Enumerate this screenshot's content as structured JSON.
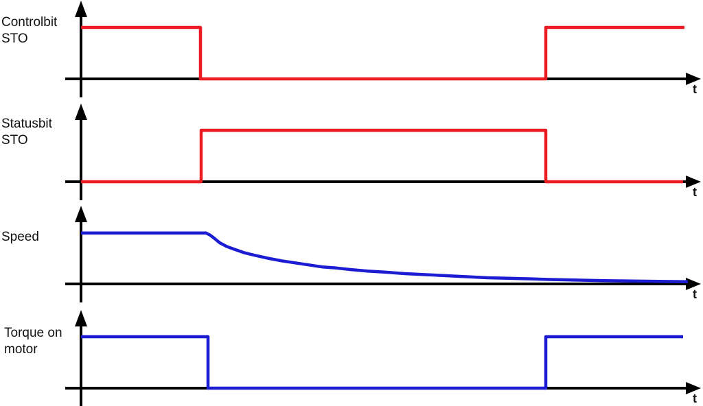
{
  "colors": {
    "signal_red": "#ed1c24",
    "signal_blue": "#1c1cd2",
    "axis_black": "#000000",
    "text_black": "#111111"
  },
  "chart_data": {
    "type": "line",
    "title": "",
    "description_visible": false,
    "x_axis": {
      "label": "t",
      "ticks": [],
      "grid": false
    },
    "y_axis": {
      "label": "",
      "ticks": [],
      "grid": false
    },
    "panels": [
      {
        "label": "Controlbit\nSTO",
        "xlabel": "t",
        "waveform": "digital",
        "color": "#ed1c24",
        "points": [
          [
            118,
            1
          ],
          [
            292,
            1
          ],
          [
            292,
            0
          ],
          [
            795,
            0
          ],
          [
            795,
            1
          ],
          [
            997,
            1
          ]
        ]
      },
      {
        "label": "Statusbit\nSTO",
        "xlabel": "t",
        "waveform": "digital",
        "color": "#ed1c24",
        "points": [
          [
            118,
            0
          ],
          [
            293,
            0
          ],
          [
            293,
            1
          ],
          [
            795,
            1
          ],
          [
            795,
            0
          ],
          [
            995,
            0
          ]
        ]
      },
      {
        "label": "Speed",
        "xlabel": "t",
        "waveform": "analog-decay",
        "color": "#1c1cd2",
        "points": [
          [
            118,
            0.99
          ],
          [
            300,
            0.99
          ],
          [
            306,
            0.95
          ],
          [
            312,
            0.89
          ],
          [
            320,
            0.8
          ],
          [
            330,
            0.73
          ],
          [
            340,
            0.68
          ],
          [
            355,
            0.61
          ],
          [
            370,
            0.56
          ],
          [
            390,
            0.5
          ],
          [
            410,
            0.45
          ],
          [
            430,
            0.41
          ],
          [
            450,
            0.37
          ],
          [
            470,
            0.33
          ],
          [
            490,
            0.31
          ],
          [
            510,
            0.28
          ],
          [
            535,
            0.25
          ],
          [
            560,
            0.23
          ],
          [
            590,
            0.2
          ],
          [
            620,
            0.18
          ],
          [
            650,
            0.16
          ],
          [
            680,
            0.14
          ],
          [
            710,
            0.12
          ],
          [
            740,
            0.11
          ],
          [
            770,
            0.1
          ],
          [
            800,
            0.087
          ],
          [
            840,
            0.075
          ],
          [
            880,
            0.064
          ],
          [
            920,
            0.056
          ],
          [
            960,
            0.049
          ],
          [
            1002,
            0.043
          ]
        ]
      },
      {
        "label": "Torque on\nmotor",
        "xlabel": "t",
        "waveform": "digital",
        "color": "#1c1cd2",
        "points": [
          [
            118,
            1
          ],
          [
            303,
            1
          ],
          [
            303,
            0
          ],
          [
            795,
            0
          ],
          [
            795,
            1
          ],
          [
            995,
            1
          ]
        ]
      }
    ]
  }
}
